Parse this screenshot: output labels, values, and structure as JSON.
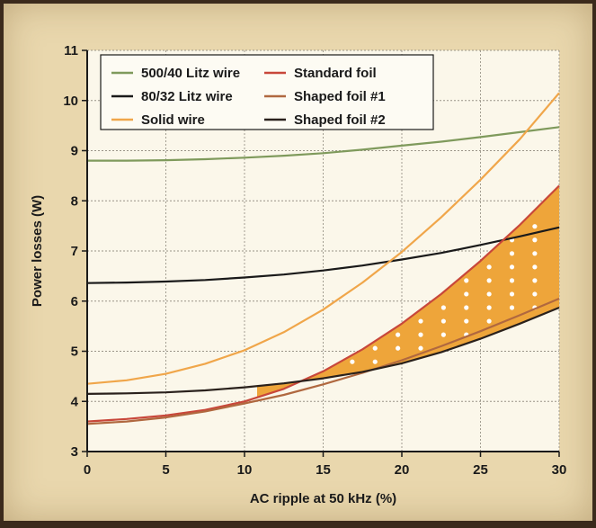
{
  "chart_data": {
    "type": "line",
    "title": "",
    "xlabel": "AC ripple at 50 kHz (%)",
    "ylabel": "Power losses (W)",
    "xlim": [
      0,
      30
    ],
    "ylim": [
      3,
      11
    ],
    "x_ticks": [
      0,
      5,
      10,
      15,
      20,
      25,
      30
    ],
    "y_ticks": [
      3,
      4,
      5,
      6,
      7,
      8,
      9,
      10,
      11
    ],
    "grid": true,
    "legend_position": "top-left",
    "colors": {
      "litz_500_40": "#7f9a5c",
      "litz_80_32": "#1a1a1a",
      "solid_wire": "#f0a64a",
      "standard_foil": "#c8473a",
      "shaped_foil_1": "#b0683f",
      "shaped_foil_2": "#2a211c",
      "shaded_region": "#eea53a",
      "dots": "#ffffff"
    },
    "x": [
      0,
      2.5,
      5,
      7.5,
      10,
      12.5,
      15,
      17.5,
      20,
      22.5,
      25,
      27.5,
      30
    ],
    "series": [
      {
        "name": "500/40 Litz wire",
        "key": "litz_500_40",
        "values": [
          8.8,
          8.8,
          8.81,
          8.83,
          8.86,
          8.9,
          8.95,
          9.02,
          9.1,
          9.18,
          9.27,
          9.37,
          9.47
        ]
      },
      {
        "name": "80/32 Litz wire",
        "key": "litz_80_32",
        "values": [
          6.36,
          6.37,
          6.39,
          6.42,
          6.47,
          6.53,
          6.61,
          6.71,
          6.83,
          6.96,
          7.12,
          7.29,
          7.47
        ]
      },
      {
        "name": "Solid wire",
        "key": "solid_wire",
        "values": [
          4.35,
          4.42,
          4.55,
          4.75,
          5.02,
          5.38,
          5.83,
          6.37,
          6.98,
          7.67,
          8.42,
          9.23,
          10.15
        ]
      },
      {
        "name": "Standard foil",
        "key": "standard_foil",
        "values": [
          3.6,
          3.65,
          3.72,
          3.83,
          4.0,
          4.25,
          4.6,
          5.04,
          5.55,
          6.14,
          6.8,
          7.52,
          8.3
        ]
      },
      {
        "name": "Shaped foil #1",
        "key": "shaped_foil_1",
        "values": [
          3.55,
          3.6,
          3.68,
          3.8,
          3.96,
          4.13,
          4.34,
          4.57,
          4.82,
          5.1,
          5.4,
          5.72,
          6.05
        ]
      },
      {
        "name": "Shaped foil #2",
        "key": "shaped_foil_2",
        "values": [
          4.15,
          4.16,
          4.18,
          4.22,
          4.28,
          4.36,
          4.46,
          4.59,
          4.76,
          4.98,
          5.25,
          5.55,
          5.87
        ]
      }
    ],
    "shaded_region": {
      "upper": "standard_foil",
      "lower": "shaped_foil_2",
      "x_from": 10.8,
      "x_to": 30
    }
  }
}
